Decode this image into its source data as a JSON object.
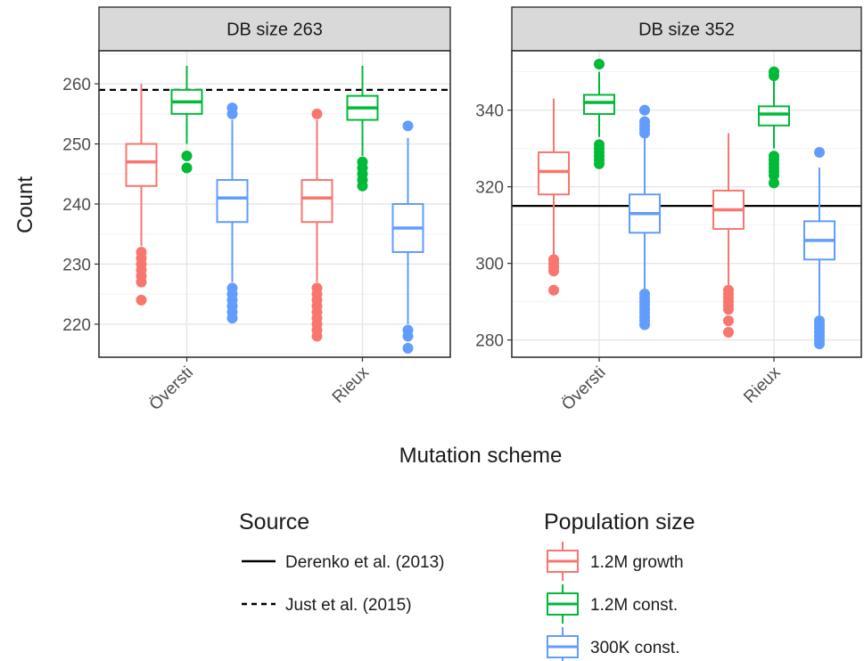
{
  "chart_data": {
    "type": "boxplot",
    "xlabel": "Mutation scheme",
    "ylabel": "Count",
    "categories": [
      "Översti",
      "Rieux"
    ],
    "series_legend": {
      "title": "Population size",
      "entries": [
        {
          "name": "1.2M growth",
          "color": "#F8766D"
        },
        {
          "name": "1.2M const.",
          "color": "#00BA38"
        },
        {
          "name": "300K const.",
          "color": "#619CFF"
        }
      ]
    },
    "reference_legend": {
      "title": "Source",
      "entries": [
        {
          "name": "Derenko et al. (2013)",
          "linetype": "solid"
        },
        {
          "name": "Just et al. (2015)",
          "linetype": "dashed"
        }
      ]
    },
    "panels": [
      {
        "strip": "DB size 263",
        "ylim": [
          214.5,
          265.5
        ],
        "yticks": [
          220,
          230,
          240,
          250,
          260
        ],
        "reference_lines": [
          {
            "source": "Just et al. (2015)",
            "linetype": "dashed",
            "value": 259
          }
        ],
        "groups": [
          {
            "category": "Översti",
            "boxes": [
              {
                "series": "1.2M growth",
                "whisker_low": 233,
                "q1": 243,
                "median": 247,
                "q3": 250,
                "whisker_high": 260,
                "outliers": [
                  232,
                  231,
                  230,
                  229,
                  228,
                  227,
                  224
                ]
              },
              {
                "series": "1.2M const.",
                "whisker_low": 250,
                "q1": 255,
                "median": 257,
                "q3": 259,
                "whisker_high": 263,
                "outliers": [
                  248,
                  246
                ]
              },
              {
                "series": "300K const.",
                "whisker_low": 227,
                "q1": 237,
                "median": 241,
                "q3": 244,
                "whisker_high": 254,
                "outliers": [
                  256,
                  255,
                  226,
                  225,
                  224,
                  223,
                  222,
                  221
                ]
              }
            ]
          },
          {
            "category": "Rieux",
            "boxes": [
              {
                "series": "1.2M growth",
                "whisker_low": 227,
                "q1": 237,
                "median": 241,
                "q3": 244,
                "whisker_high": 254,
                "outliers": [
                  255,
                  226,
                  225,
                  224,
                  223,
                  222,
                  221,
                  220,
                  219,
                  218
                ]
              },
              {
                "series": "1.2M const.",
                "whisker_low": 248,
                "q1": 254,
                "median": 256,
                "q3": 258,
                "whisker_high": 263,
                "outliers": [
                  247,
                  246,
                  245,
                  244,
                  243
                ]
              },
              {
                "series": "300K const.",
                "whisker_low": 220,
                "q1": 232,
                "median": 236,
                "q3": 240,
                "whisker_high": 251,
                "outliers": [
                  253,
                  219,
                  218,
                  216
                ]
              }
            ]
          }
        ]
      },
      {
        "strip": "DB size 352",
        "ylim": [
          275.5,
          355.5
        ],
        "yticks": [
          280,
          300,
          320,
          340
        ],
        "reference_lines": [
          {
            "source": "Derenko et al. (2013)",
            "linetype": "solid",
            "value": 315
          }
        ],
        "groups": [
          {
            "category": "Översti",
            "boxes": [
              {
                "series": "1.2M growth",
                "whisker_low": 302,
                "q1": 318,
                "median": 324,
                "q3": 329,
                "whisker_high": 343,
                "outliers": [
                  301,
                  300,
                  299,
                  298,
                  293
                ]
              },
              {
                "series": "1.2M const.",
                "whisker_low": 333,
                "q1": 339,
                "median": 342,
                "q3": 344,
                "whisker_high": 350,
                "outliers": [
                  352,
                  331,
                  330,
                  329,
                  328,
                  327,
                  326
                ]
              },
              {
                "series": "300K const.",
                "whisker_low": 293,
                "q1": 308,
                "median": 313,
                "q3": 318,
                "whisker_high": 333,
                "outliers": [
                  340,
                  337,
                  336,
                  335,
                  334,
                  292,
                  291,
                  290,
                  289,
                  288,
                  287,
                  286,
                  285,
                  284
                ]
              }
            ]
          },
          {
            "category": "Rieux",
            "boxes": [
              {
                "series": "1.2M growth",
                "whisker_low": 294,
                "q1": 309,
                "median": 314,
                "q3": 319,
                "whisker_high": 334,
                "outliers": [
                  293,
                  292,
                  291,
                  290,
                  289,
                  288,
                  285,
                  282
                ]
              },
              {
                "series": "1.2M const.",
                "whisker_low": 330,
                "q1": 336,
                "median": 339,
                "q3": 341,
                "whisker_high": 348,
                "outliers": [
                  350,
                  349,
                  328,
                  327,
                  326,
                  325,
                  324,
                  323,
                  321
                ]
              },
              {
                "series": "300K const.",
                "whisker_low": 286,
                "q1": 301,
                "median": 306,
                "q3": 311,
                "whisker_high": 325,
                "outliers": [
                  329,
                  285,
                  284,
                  283,
                  282,
                  281,
                  280,
                  279
                ]
              }
            ]
          }
        ]
      }
    ],
    "grid": true
  }
}
